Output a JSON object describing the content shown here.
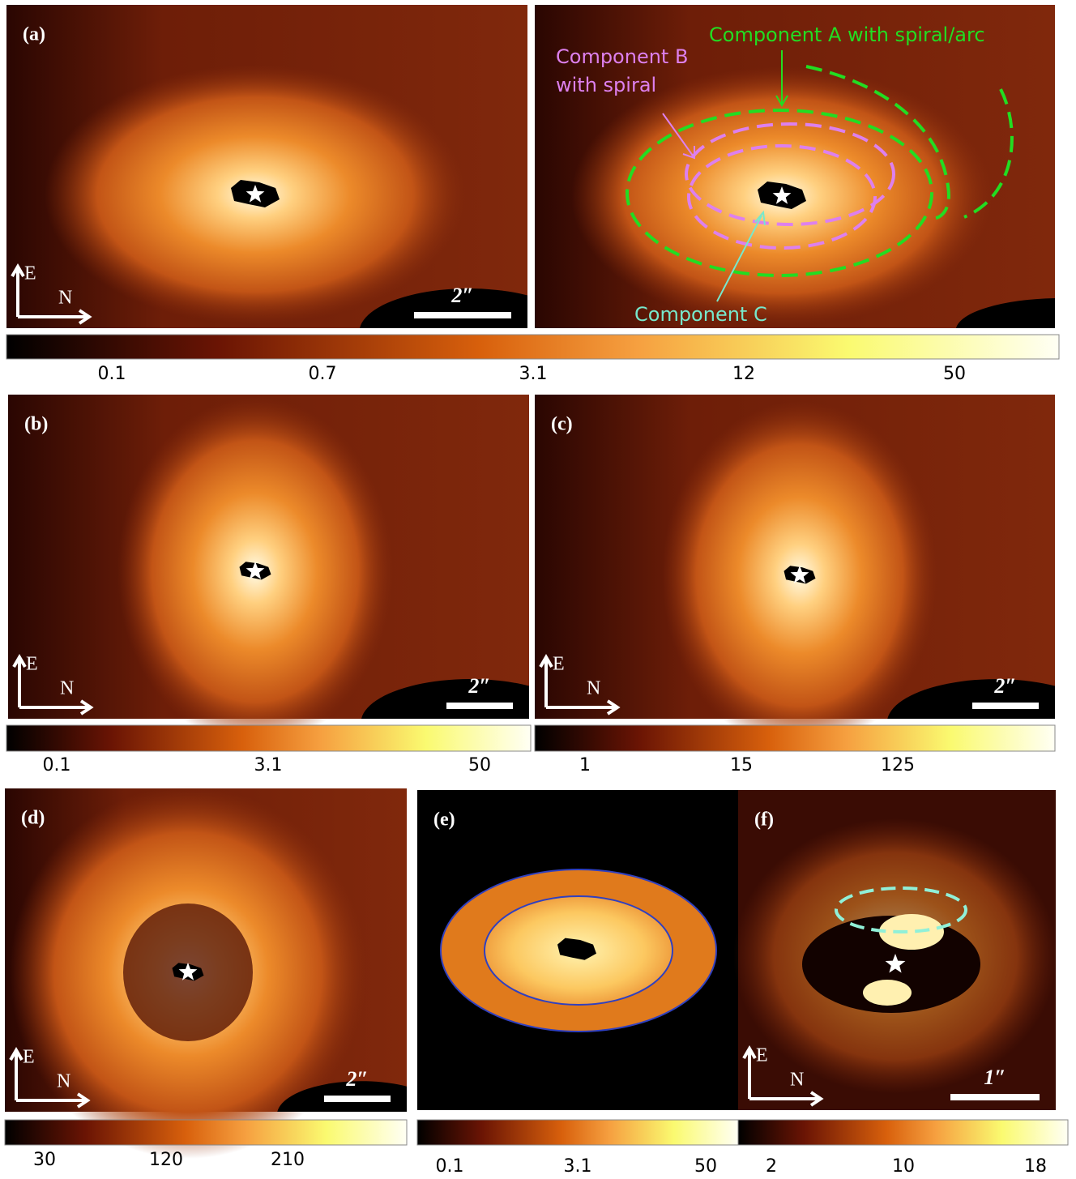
{
  "panels": [
    {
      "label": "(a)",
      "scale_bar": "2″",
      "compass": [
        "E",
        "N"
      ]
    },
    {
      "annotations": [
        "Component A with spiral/arc",
        "Component B",
        "with spiral",
        "Component C"
      ]
    },
    {
      "label": "(b)",
      "scale_bar": "2″",
      "compass": [
        "E",
        "N"
      ]
    },
    {
      "label": "(c)",
      "scale_bar": "2″",
      "compass": [
        "E",
        "N"
      ]
    },
    {
      "label": "(d)",
      "scale_bar": "2″",
      "compass": [
        "E",
        "N"
      ]
    },
    {
      "label": "(e)"
    },
    {
      "label": "(f)",
      "scale_bar": "1″",
      "compass": [
        "E",
        "N"
      ]
    }
  ],
  "colorbars": [
    {
      "ticks": [
        0.1,
        0.7,
        3.1,
        12,
        50
      ]
    },
    {
      "ticks": [
        0.1,
        3.1,
        50
      ]
    },
    {
      "ticks": [
        1,
        15,
        125
      ]
    },
    {
      "ticks": [
        30,
        120,
        210
      ]
    },
    {
      "ticks": [
        0.1,
        3.1,
        50
      ]
    },
    {
      "ticks": [
        2,
        10,
        18
      ]
    }
  ]
}
